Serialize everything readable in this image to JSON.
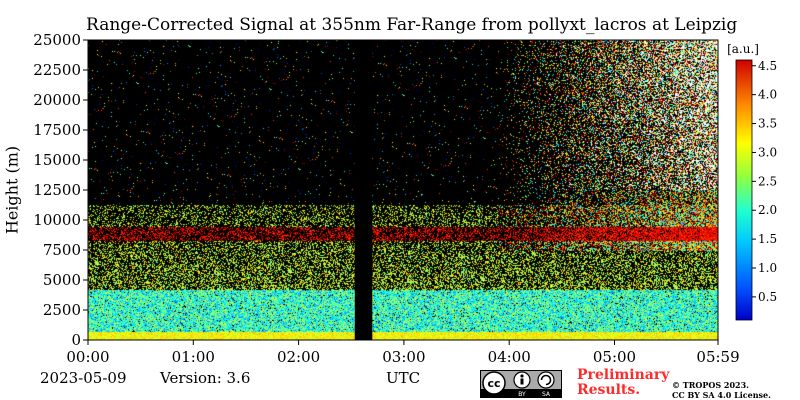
{
  "chart_data": {
    "type": "heatmap",
    "title": "Range-Corrected Signal at 355nm Far-Range from pollyxt_lacros at Leipzig",
    "ylabel": "Height (m)",
    "xlabel": "UTC",
    "x_ticks": [
      "00:00",
      "01:00",
      "02:00",
      "03:00",
      "04:00",
      "05:00",
      "05:59"
    ],
    "x_range_hours": [
      0,
      5.983
    ],
    "y_ticks": [
      0,
      2500,
      5000,
      7500,
      10000,
      12500,
      15000,
      17500,
      20000,
      22500,
      25000
    ],
    "ylim": [
      0,
      25000
    ],
    "data_gap_utc": [
      "02:32",
      "02:42"
    ],
    "colorbar": {
      "label": "[a.u.]",
      "ticks": [
        "0.5",
        "1.0",
        "1.5",
        "2.0",
        "2.5",
        "3.0",
        "3.5",
        "4.0",
        "4.5"
      ],
      "range": [
        0.1,
        4.6
      ],
      "colormap": "jet",
      "position": "right"
    }
  },
  "footer": {
    "date": "2023-05-09",
    "version": "Version: 3.6",
    "preliminary_line1": "Preliminary",
    "preliminary_line2": "Results.",
    "copyright_line1": "© TROPOS 2023.",
    "copyright_line2": "CC BY SA 4.0 License."
  },
  "license_badge": {
    "text": "cc",
    "by": "BY",
    "sa": "SA"
  }
}
